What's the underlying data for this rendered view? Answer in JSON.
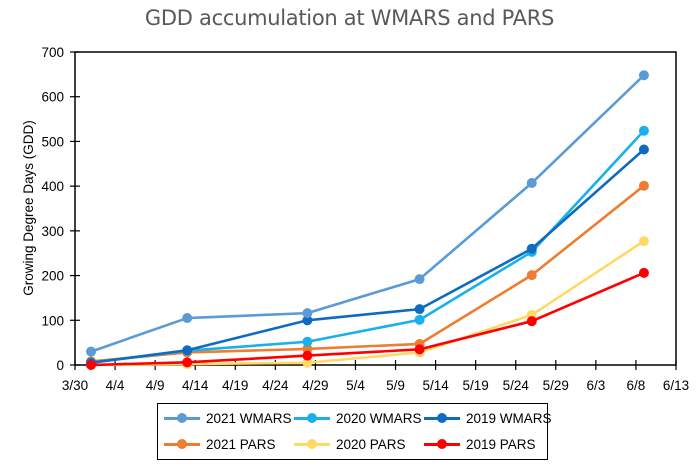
{
  "chart_data": {
    "type": "line",
    "title": "GDD accumulation at WMARS and PARS",
    "xlabel": "",
    "ylabel": "Growing Degree Days (GDD)",
    "ylim": [
      0,
      700
    ],
    "yticks": [
      0,
      100,
      200,
      300,
      400,
      500,
      600,
      700
    ],
    "xlim_days_from_3_30": [
      0,
      75
    ],
    "xtick_labels": [
      "3/30",
      "4/4",
      "4/9",
      "4/14",
      "4/19",
      "4/24",
      "4/29",
      "5/4",
      "5/9",
      "5/14",
      "5/19",
      "5/24",
      "5/29",
      "6/3",
      "6/8",
      "6/13"
    ],
    "x_dates": [
      "4/1",
      "4/13",
      "4/28",
      "5/12",
      "5/26",
      "6/9"
    ],
    "x_days_from_3_30": [
      2,
      14,
      29,
      43,
      57,
      71
    ],
    "grid": false,
    "legend_position": "bottom",
    "series": [
      {
        "name": "2021 WMARS",
        "color": "#5b9bd5",
        "values": [
          30,
          105,
          116,
          192,
          407,
          648
        ]
      },
      {
        "name": "2020 WMARS",
        "color": "#1ab0ec",
        "values": [
          5,
          32,
          52,
          101,
          253,
          524
        ]
      },
      {
        "name": "2019 WMARS",
        "color": "#0f6bc0",
        "values": [
          5,
          33,
          100,
          125,
          260,
          482
        ]
      },
      {
        "name": "2021 PARS",
        "color": "#ed7d31",
        "values": [
          8,
          28,
          36,
          47,
          201,
          401
        ]
      },
      {
        "name": "2020 PARS",
        "color": "#ffd966",
        "values": [
          0,
          2,
          5,
          28,
          112,
          277
        ]
      },
      {
        "name": "2019 PARS",
        "color": "#ff0000",
        "values": [
          0,
          6,
          21,
          35,
          98,
          206
        ]
      }
    ]
  }
}
